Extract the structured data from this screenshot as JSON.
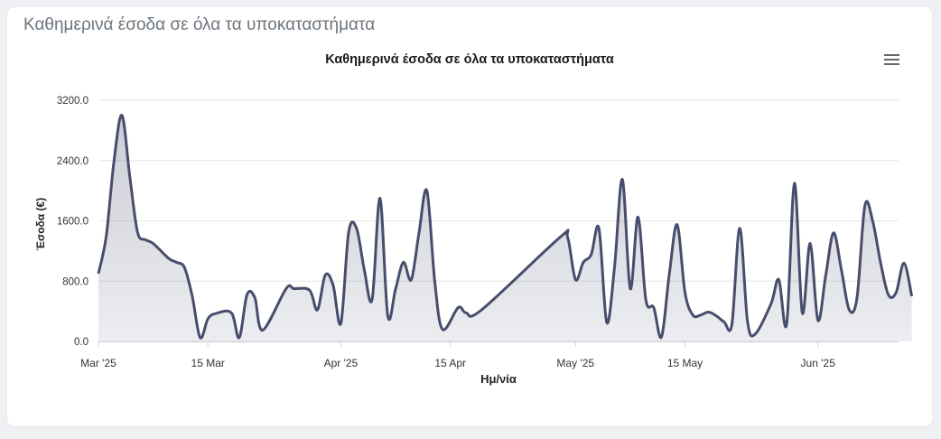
{
  "card": {
    "title": "Καθημερινά έσοδα σε όλα τα υποκαταστήματα"
  },
  "chart_data": {
    "type": "area",
    "title": "Καθημερινά έσοδα σε όλα τα υποκαταστήματα",
    "xlabel": "Ημ/νία",
    "ylabel": "Έσοδα (€)",
    "ylim": [
      0,
      3200
    ],
    "yticks": [
      "0.0",
      "800.0",
      "1600.0",
      "2400.0",
      "3200.0"
    ],
    "xticks": [
      {
        "label": "Mar '25",
        "date": "2025-03-01"
      },
      {
        "label": "15 Mar",
        "date": "2025-03-15"
      },
      {
        "label": "Apr '25",
        "date": "2025-04-01"
      },
      {
        "label": "15 Apr",
        "date": "2025-04-15"
      },
      {
        "label": "May '25",
        "date": "2025-05-01"
      },
      {
        "label": "15 May",
        "date": "2025-05-15"
      },
      {
        "label": "Jun '25",
        "date": "2025-06-01"
      }
    ],
    "xrange": [
      "2025-03-01",
      "2025-06-11"
    ],
    "grid": true,
    "colors": {
      "line": "#474d6c",
      "fill": "#474d6c",
      "grid": "#e6e6e6",
      "axis": "#cfd2d8"
    },
    "points": [
      [
        "2025-03-01",
        900
      ],
      [
        "2025-03-02",
        1400
      ],
      [
        "2025-03-03",
        2400
      ],
      [
        "2025-03-04",
        3000
      ],
      [
        "2025-03-05",
        2200
      ],
      [
        "2025-03-06",
        1450
      ],
      [
        "2025-03-07",
        1350
      ],
      [
        "2025-03-08",
        1300
      ],
      [
        "2025-03-10",
        1100
      ],
      [
        "2025-03-11",
        1050
      ],
      [
        "2025-03-12",
        980
      ],
      [
        "2025-03-13",
        600
      ],
      [
        "2025-03-14",
        50
      ],
      [
        "2025-03-15",
        300
      ],
      [
        "2025-03-16",
        370
      ],
      [
        "2025-03-18",
        380
      ],
      [
        "2025-03-19",
        50
      ],
      [
        "2025-03-20",
        620
      ],
      [
        "2025-03-21",
        580
      ],
      [
        "2025-03-22",
        150
      ],
      [
        "2025-03-25",
        700
      ],
      [
        "2025-03-26",
        700
      ],
      [
        "2025-03-28",
        680
      ],
      [
        "2025-03-29",
        420
      ],
      [
        "2025-03-30",
        880
      ],
      [
        "2025-03-31",
        750
      ],
      [
        "2025-04-01",
        240
      ],
      [
        "2025-04-02",
        1450
      ],
      [
        "2025-04-03",
        1500
      ],
      [
        "2025-04-04",
        950
      ],
      [
        "2025-04-05",
        560
      ],
      [
        "2025-04-06",
        1900
      ],
      [
        "2025-04-07",
        340
      ],
      [
        "2025-04-08",
        700
      ],
      [
        "2025-04-09",
        1050
      ],
      [
        "2025-04-10",
        820
      ],
      [
        "2025-04-11",
        1450
      ],
      [
        "2025-04-12",
        2000
      ],
      [
        "2025-04-13",
        800
      ],
      [
        "2025-04-14",
        160
      ],
      [
        "2025-04-16",
        450
      ],
      [
        "2025-04-17",
        380
      ],
      [
        "2025-04-19",
        420
      ],
      [
        "2025-04-29",
        1380
      ],
      [
        "2025-04-30",
        1380
      ],
      [
        "2025-05-01",
        820
      ],
      [
        "2025-05-02",
        1050
      ],
      [
        "2025-05-03",
        1150
      ],
      [
        "2025-05-04",
        1500
      ],
      [
        "2025-05-05",
        250
      ],
      [
        "2025-05-06",
        1000
      ],
      [
        "2025-05-07",
        2150
      ],
      [
        "2025-05-08",
        700
      ],
      [
        "2025-05-09",
        1650
      ],
      [
        "2025-05-10",
        550
      ],
      [
        "2025-05-11",
        450
      ],
      [
        "2025-05-12",
        60
      ],
      [
        "2025-05-13",
        900
      ],
      [
        "2025-05-14",
        1550
      ],
      [
        "2025-05-15",
        650
      ],
      [
        "2025-05-16",
        350
      ],
      [
        "2025-05-17",
        350
      ],
      [
        "2025-05-18",
        390
      ],
      [
        "2025-05-19",
        340
      ],
      [
        "2025-05-20",
        260
      ],
      [
        "2025-05-21",
        230
      ],
      [
        "2025-05-22",
        1500
      ],
      [
        "2025-05-23",
        260
      ],
      [
        "2025-05-24",
        100
      ],
      [
        "2025-05-26",
        500
      ],
      [
        "2025-05-27",
        820
      ],
      [
        "2025-05-28",
        230
      ],
      [
        "2025-05-29",
        2100
      ],
      [
        "2025-05-30",
        380
      ],
      [
        "2025-05-31",
        1300
      ],
      [
        "2025-06-01",
        280
      ],
      [
        "2025-06-02",
        880
      ],
      [
        "2025-06-03",
        1440
      ],
      [
        "2025-06-04",
        950
      ],
      [
        "2025-06-05",
        420
      ],
      [
        "2025-06-06",
        580
      ],
      [
        "2025-06-07",
        1800
      ],
      [
        "2025-06-08",
        1600
      ],
      [
        "2025-06-09",
        1050
      ],
      [
        "2025-06-10",
        620
      ],
      [
        "2025-06-11",
        650
      ],
      [
        "2025-06-12",
        1040
      ],
      [
        "2025-06-13",
        600
      ]
    ]
  }
}
